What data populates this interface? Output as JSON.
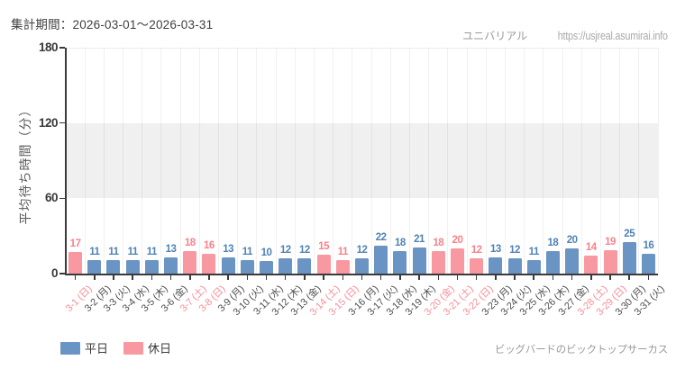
{
  "header": {
    "period_label": "集計期間：2026-03-01～2026-03-31",
    "brand": "ユニバリアル",
    "url": "https://usjreal.asumirai.info"
  },
  "footer": {
    "attraction": "ビッグバードのビックトップサーカス"
  },
  "chart_data": {
    "type": "bar",
    "title": "",
    "xlabel": "",
    "ylabel": "平均待ち時間（分）",
    "ylim": [
      0,
      180
    ],
    "yticks": [
      0,
      60,
      120,
      180
    ],
    "shaded_band": [
      60,
      120
    ],
    "grid": "vertical-per-category",
    "legend_position": "bottom-left",
    "categories": [
      "3-1 (日)",
      "3-2 (月)",
      "3-3 (火)",
      "3-4 (水)",
      "3-5 (木)",
      "3-6 (金)",
      "3-7 (土)",
      "3-8 (日)",
      "3-9 (月)",
      "3-10 (火)",
      "3-11 (水)",
      "3-12 (木)",
      "3-13 (金)",
      "3-14 (土)",
      "3-15 (日)",
      "3-16 (月)",
      "3-17 (火)",
      "3-18 (水)",
      "3-19 (木)",
      "3-20 (金)",
      "3-21 (土)",
      "3-22 (日)",
      "3-23 (月)",
      "3-24 (火)",
      "3-25 (水)",
      "3-26 (木)",
      "3-27 (金)",
      "3-28 (土)",
      "3-29 (日)",
      "3-30 (月)",
      "3-31 (火)"
    ],
    "values": [
      17,
      11,
      11,
      11,
      11,
      13,
      18,
      16,
      13,
      11,
      10,
      12,
      12,
      15,
      11,
      12,
      22,
      18,
      21,
      18,
      20,
      12,
      13,
      12,
      11,
      18,
      20,
      14,
      19,
      25,
      16
    ],
    "day_types": [
      "holiday",
      "weekday",
      "weekday",
      "weekday",
      "weekday",
      "weekday",
      "holiday",
      "holiday",
      "weekday",
      "weekday",
      "weekday",
      "weekday",
      "weekday",
      "holiday",
      "holiday",
      "weekday",
      "weekday",
      "weekday",
      "weekday",
      "holiday",
      "holiday",
      "holiday",
      "weekday",
      "weekday",
      "weekday",
      "weekday",
      "weekday",
      "holiday",
      "holiday",
      "weekday",
      "weekday"
    ],
    "legend": [
      {
        "label": "平日",
        "type": "weekday"
      },
      {
        "label": "休日",
        "type": "holiday"
      }
    ],
    "colors": {
      "bar_weekday": "#6a94c3",
      "bar_holiday": "#f899a2",
      "value_label_weekday": "#4e82b5",
      "value_label_holiday": "#f8808b",
      "axis_label_weekday": "#4f4f4f",
      "axis_label_holiday": "#f78f98"
    }
  }
}
